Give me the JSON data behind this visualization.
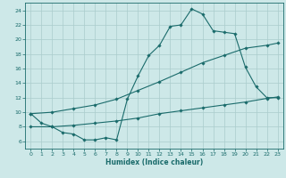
{
  "xlabel": "Humidex (Indice chaleur)",
  "xlim": [
    -0.5,
    23.5
  ],
  "ylim": [
    5,
    25
  ],
  "yticks": [
    6,
    8,
    10,
    12,
    14,
    16,
    18,
    20,
    22,
    24
  ],
  "xticks": [
    0,
    1,
    2,
    3,
    4,
    5,
    6,
    7,
    8,
    9,
    10,
    11,
    12,
    13,
    14,
    15,
    16,
    17,
    18,
    19,
    20,
    21,
    22,
    23
  ],
  "bg_color": "#cde8e8",
  "grid_color": "#aacccc",
  "line_color": "#1a6b6b",
  "line1_x": [
    0,
    1,
    2,
    3,
    4,
    5,
    6,
    7,
    8,
    9,
    10,
    11,
    12,
    13,
    14,
    15,
    16,
    17,
    18,
    19,
    20,
    21,
    22,
    23
  ],
  "line1_y": [
    9.8,
    8.5,
    8.0,
    7.2,
    7.0,
    6.2,
    6.2,
    6.5,
    6.2,
    11.8,
    15.0,
    17.8,
    19.2,
    21.8,
    22.0,
    24.2,
    23.5,
    21.2,
    21.0,
    20.8,
    16.2,
    13.5,
    12.0,
    12.0
  ],
  "line2_x": [
    0,
    2,
    4,
    6,
    8,
    10,
    12,
    14,
    16,
    18,
    20,
    22,
    23
  ],
  "line2_y": [
    9.8,
    10.0,
    10.5,
    11.0,
    11.8,
    13.0,
    14.2,
    15.5,
    16.8,
    17.8,
    18.8,
    19.2,
    19.5
  ],
  "line3_x": [
    0,
    2,
    4,
    6,
    8,
    10,
    12,
    14,
    16,
    18,
    20,
    22,
    23
  ],
  "line3_y": [
    8.0,
    8.0,
    8.2,
    8.5,
    8.8,
    9.2,
    9.8,
    10.2,
    10.6,
    11.0,
    11.4,
    11.9,
    12.1
  ]
}
